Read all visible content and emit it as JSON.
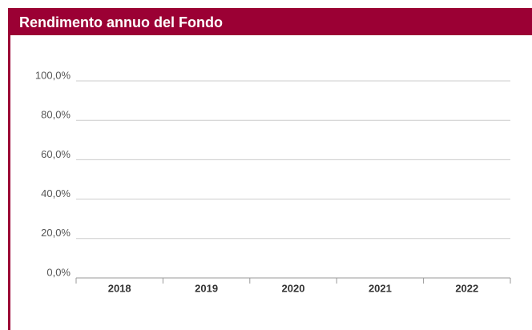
{
  "chart_data": {
    "type": "bar",
    "title": "Rendimento annuo del Fondo",
    "categories": [
      "2018",
      "2019",
      "2020",
      "2021",
      "2022"
    ],
    "ylim": [
      0,
      100
    ],
    "yticks": [
      {
        "value": 0,
        "label": "0,0%"
      },
      {
        "value": 20,
        "label": "20,0%"
      },
      {
        "value": 40,
        "label": "40,0%"
      },
      {
        "value": 60,
        "label": "60,0%"
      },
      {
        "value": 80,
        "label": "80,0%"
      },
      {
        "value": 100,
        "label": "100,0%"
      }
    ],
    "grid": true
  }
}
